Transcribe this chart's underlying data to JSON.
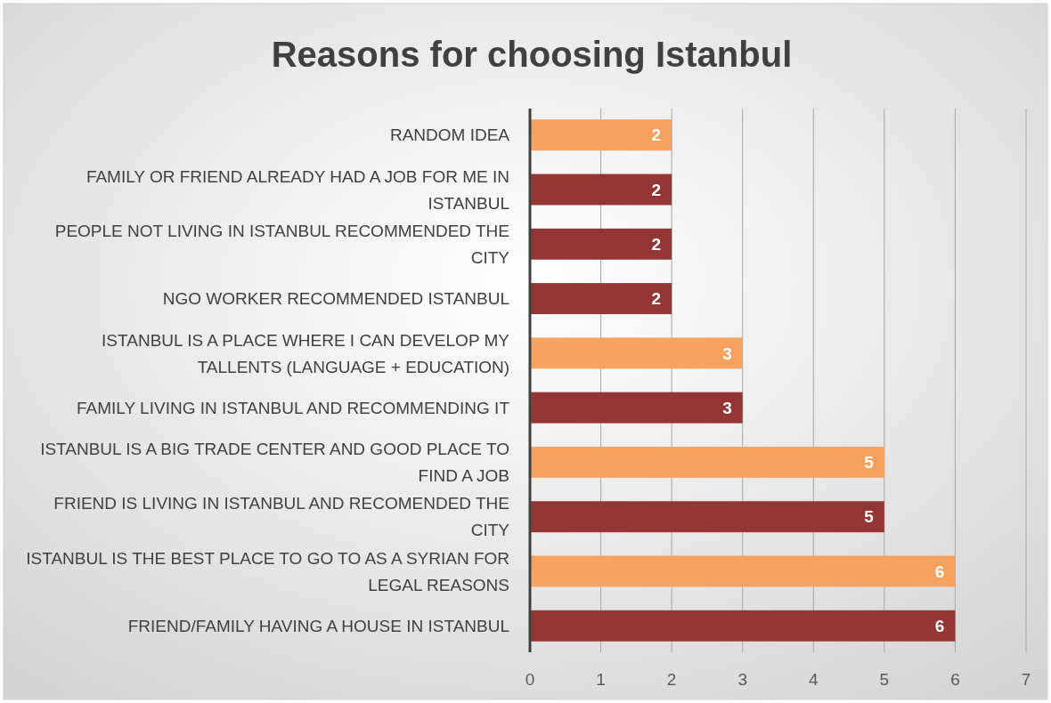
{
  "chart_data": {
    "type": "bar",
    "orientation": "horizontal",
    "title": "Reasons for choosing Istanbul",
    "categories": [
      "RANDOM IDEA",
      "FAMILY OR FRIEND ALREADY HAD A JOB FOR ME IN ISTANBUL",
      "PEOPLE NOT LIVING IN ISTANBUL RECOMMENDED THE CITY",
      "NGO WORKER RECOMMENDED ISTANBUL",
      "ISTANBUL IS A PLACE WHERE I CAN DEVELOP MY TALLENTS (LANGUAGE + EDUCATION)",
      "FAMILY LIVING IN ISTANBUL AND RECOMMENDING IT",
      "ISTANBUL IS A BIG TRADE CENTER AND GOOD PLACE TO FIND A JOB",
      "FRIEND IS LIVING IN ISTANBUL AND RECOMENDED THE CITY",
      "ISTANBUL IS THE BEST PLACE TO GO TO AS A SYRIAN FOR LEGAL REASONS",
      "FRIEND/FAMILY HAVING A HOUSE IN ISTANBUL"
    ],
    "values": [
      2,
      2,
      2,
      2,
      3,
      3,
      5,
      5,
      6,
      6
    ],
    "colors": [
      "#f7a35f",
      "#943634",
      "#943634",
      "#943634",
      "#f7a35f",
      "#943634",
      "#f7a35f",
      "#943634",
      "#f7a35f",
      "#943634"
    ],
    "xlim": [
      0,
      7
    ],
    "xticks": [
      0,
      1,
      2,
      3,
      4,
      5,
      6,
      7
    ],
    "grid": "x",
    "data_labels": true
  }
}
